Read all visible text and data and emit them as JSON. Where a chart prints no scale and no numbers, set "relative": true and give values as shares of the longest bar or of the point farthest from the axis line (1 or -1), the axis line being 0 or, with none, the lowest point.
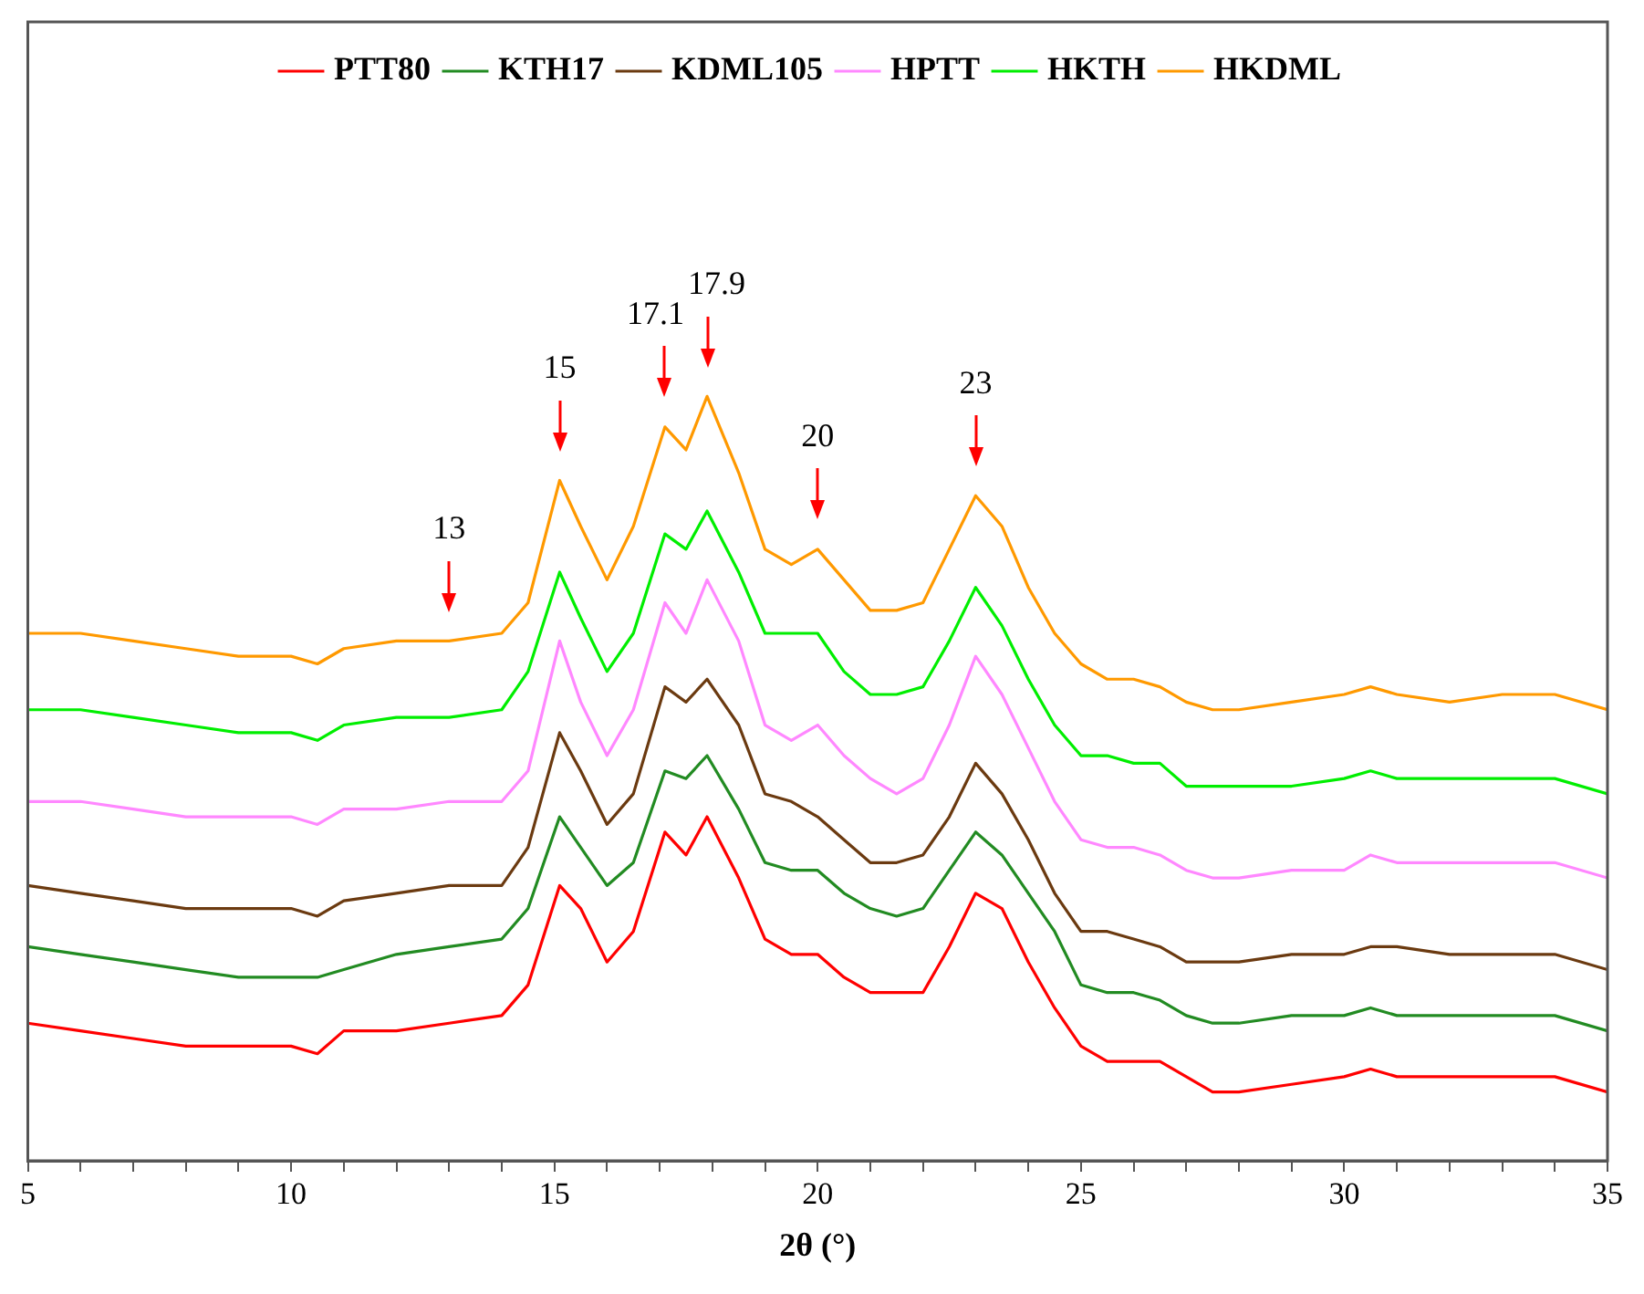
{
  "chart_data": {
    "type": "line",
    "relative": true,
    "xlabel": "2θ (°)",
    "legend": "top",
    "marker": "none",
    "line_style": "solid",
    "grid": false,
    "x": [
      5,
      6,
      7,
      8,
      9,
      10,
      10.5,
      11,
      12,
      13,
      14,
      14.5,
      15.1,
      15.5,
      16,
      16.5,
      17.1,
      17.5,
      17.9,
      18.5,
      19,
      19.5,
      20,
      20.5,
      21,
      21.5,
      22,
      22.5,
      23,
      23.5,
      24,
      24.5,
      25,
      25.5,
      26,
      26.5,
      27,
      27.5,
      28,
      29,
      30,
      30.5,
      31,
      32,
      33,
      34,
      35
    ],
    "xlim": [
      5,
      35
    ],
    "xticks": [
      5,
      {
        "value": 6,
        "label": null
      },
      {
        "value": 7,
        "label": null
      },
      {
        "value": 8,
        "label": null
      },
      {
        "value": 9,
        "label": null
      },
      10,
      {
        "value": 11,
        "label": null
      },
      {
        "value": 12,
        "label": null
      },
      {
        "value": 13,
        "label": null
      },
      {
        "value": 14,
        "label": null
      },
      15,
      {
        "value": 16,
        "label": null
      },
      {
        "value": 17,
        "label": null
      },
      {
        "value": 18,
        "label": null
      },
      {
        "value": 19,
        "label": null
      },
      20,
      {
        "value": 21,
        "label": null
      },
      {
        "value": 22,
        "label": null
      },
      {
        "value": 23,
        "label": null
      },
      {
        "value": 24,
        "label": null
      },
      25,
      {
        "value": 26,
        "label": null
      },
      {
        "value": 27,
        "label": null
      },
      {
        "value": 28,
        "label": null
      },
      {
        "value": 29,
        "label": null
      },
      30,
      {
        "value": 31,
        "label": null
      },
      {
        "value": 32,
        "label": null
      },
      {
        "value": 33,
        "label": null
      },
      {
        "value": 34,
        "label": null
      },
      35
    ],
    "series": [
      {
        "name": "PTT80",
        "color": "#ff0000",
        "values": [
          0.18,
          0.17,
          0.16,
          0.15,
          0.15,
          0.15,
          0.14,
          0.17,
          0.17,
          0.18,
          0.19,
          0.23,
          0.36,
          0.33,
          0.26,
          0.3,
          0.43,
          0.4,
          0.45,
          0.37,
          0.29,
          0.27,
          0.27,
          0.24,
          0.22,
          0.22,
          0.22,
          0.28,
          0.35,
          0.33,
          0.26,
          0.2,
          0.15,
          0.13,
          0.13,
          0.13,
          0.11,
          0.09,
          0.09,
          0.1,
          0.11,
          0.12,
          0.11,
          0.11,
          0.11,
          0.11,
          0.09
        ]
      },
      {
        "name": "KTH17",
        "color": "#228b22",
        "values": [
          0.28,
          0.27,
          0.26,
          0.25,
          0.24,
          0.24,
          0.24,
          0.25,
          0.27,
          0.28,
          0.29,
          0.33,
          0.45,
          0.41,
          0.36,
          0.39,
          0.51,
          0.5,
          0.53,
          0.46,
          0.39,
          0.38,
          0.38,
          0.35,
          0.33,
          0.32,
          0.33,
          0.38,
          0.43,
          0.4,
          0.35,
          0.3,
          0.23,
          0.22,
          0.22,
          0.21,
          0.19,
          0.18,
          0.18,
          0.19,
          0.19,
          0.2,
          0.19,
          0.19,
          0.19,
          0.19,
          0.17
        ]
      },
      {
        "name": "KDML105",
        "color": "#6b3a10",
        "values": [
          0.36,
          0.35,
          0.34,
          0.33,
          0.33,
          0.33,
          0.32,
          0.34,
          0.35,
          0.36,
          0.36,
          0.41,
          0.56,
          0.51,
          0.44,
          0.48,
          0.62,
          0.6,
          0.63,
          0.57,
          0.48,
          0.47,
          0.45,
          0.42,
          0.39,
          0.39,
          0.4,
          0.45,
          0.52,
          0.48,
          0.42,
          0.35,
          0.3,
          0.3,
          0.29,
          0.28,
          0.26,
          0.26,
          0.26,
          0.27,
          0.27,
          0.28,
          0.28,
          0.27,
          0.27,
          0.27,
          0.25
        ]
      },
      {
        "name": "HPTT",
        "color": "#ff88ff",
        "values": [
          0.47,
          0.47,
          0.46,
          0.45,
          0.45,
          0.45,
          0.44,
          0.46,
          0.46,
          0.47,
          0.47,
          0.51,
          0.68,
          0.6,
          0.53,
          0.59,
          0.73,
          0.69,
          0.76,
          0.68,
          0.57,
          0.55,
          0.57,
          0.53,
          0.5,
          0.48,
          0.5,
          0.57,
          0.66,
          0.61,
          0.54,
          0.47,
          0.42,
          0.41,
          0.41,
          0.4,
          0.38,
          0.37,
          0.37,
          0.38,
          0.38,
          0.4,
          0.39,
          0.39,
          0.39,
          0.39,
          0.37
        ]
      },
      {
        "name": "HKTH",
        "color": "#00ee00",
        "values": [
          0.59,
          0.59,
          0.58,
          0.57,
          0.56,
          0.56,
          0.55,
          0.57,
          0.58,
          0.58,
          0.59,
          0.64,
          0.77,
          0.71,
          0.64,
          0.69,
          0.82,
          0.8,
          0.85,
          0.77,
          0.69,
          0.69,
          0.69,
          0.64,
          0.61,
          0.61,
          0.62,
          0.68,
          0.75,
          0.7,
          0.63,
          0.57,
          0.53,
          0.53,
          0.52,
          0.52,
          0.49,
          0.49,
          0.49,
          0.49,
          0.5,
          0.51,
          0.5,
          0.5,
          0.5,
          0.5,
          0.48
        ]
      },
      {
        "name": "HKDML",
        "color": "#ff9900",
        "values": [
          0.69,
          0.69,
          0.68,
          0.67,
          0.66,
          0.66,
          0.65,
          0.67,
          0.68,
          0.68,
          0.69,
          0.73,
          0.89,
          0.83,
          0.76,
          0.83,
          0.96,
          0.93,
          1.0,
          0.9,
          0.8,
          0.78,
          0.8,
          0.76,
          0.72,
          0.72,
          0.73,
          0.8,
          0.87,
          0.83,
          0.75,
          0.69,
          0.65,
          0.63,
          0.63,
          0.62,
          0.6,
          0.59,
          0.59,
          0.6,
          0.61,
          0.62,
          0.61,
          0.6,
          0.61,
          0.61,
          0.59
        ]
      }
    ],
    "annotations": [
      {
        "text": "13",
        "x": 13,
        "y": 0.68
      },
      {
        "text": "15",
        "x": 15.1,
        "y": 0.89
      },
      {
        "text": "17.1",
        "x": 17.1,
        "y": 0.96
      },
      {
        "text": "17.9",
        "x": 17.9,
        "y": 1.0
      },
      {
        "text": "20",
        "x": 20,
        "y": 0.8
      },
      {
        "text": "23",
        "x": 23,
        "y": 0.87
      }
    ]
  }
}
